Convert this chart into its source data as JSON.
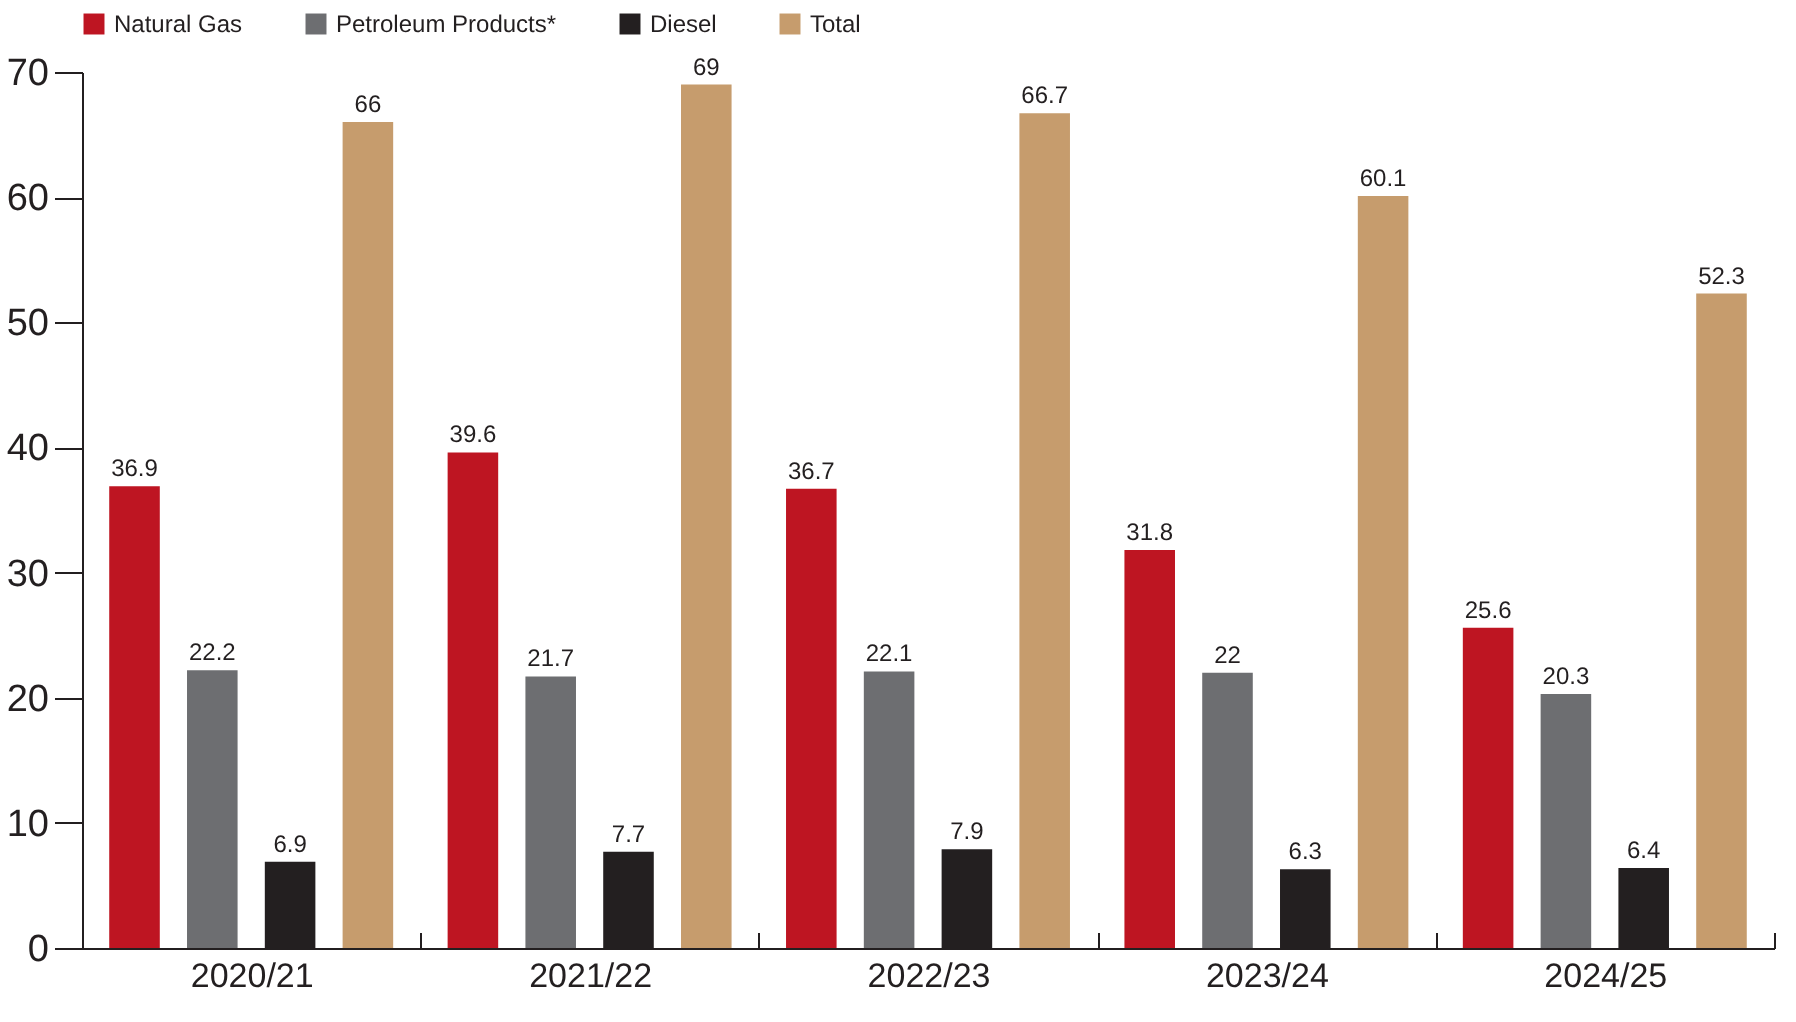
{
  "chart_data": {
    "type": "bar",
    "categories": [
      "2020/21",
      "2021/22",
      "2022/23",
      "2023/24",
      "2024/25"
    ],
    "series": [
      {
        "name": "Natural Gas",
        "color": "#be1522",
        "values": [
          36.9,
          39.6,
          36.7,
          31.8,
          25.6
        ]
      },
      {
        "name": "Petroleum Products*",
        "color": "#6d6e71",
        "values": [
          22.2,
          21.7,
          22.1,
          22,
          20.3
        ]
      },
      {
        "name": "Diesel",
        "color": "#231f20",
        "values": [
          6.9,
          7.7,
          7.9,
          6.3,
          6.4
        ]
      },
      {
        "name": "Total",
        "color": "#c69c6d",
        "values": [
          66,
          69,
          66.7,
          60.1,
          52.3
        ]
      }
    ],
    "ylim": [
      0,
      70
    ],
    "yticks": [
      0,
      10,
      20,
      30,
      40,
      50,
      60,
      70
    ],
    "grid": false,
    "legend": "top",
    "data_labels": true
  }
}
